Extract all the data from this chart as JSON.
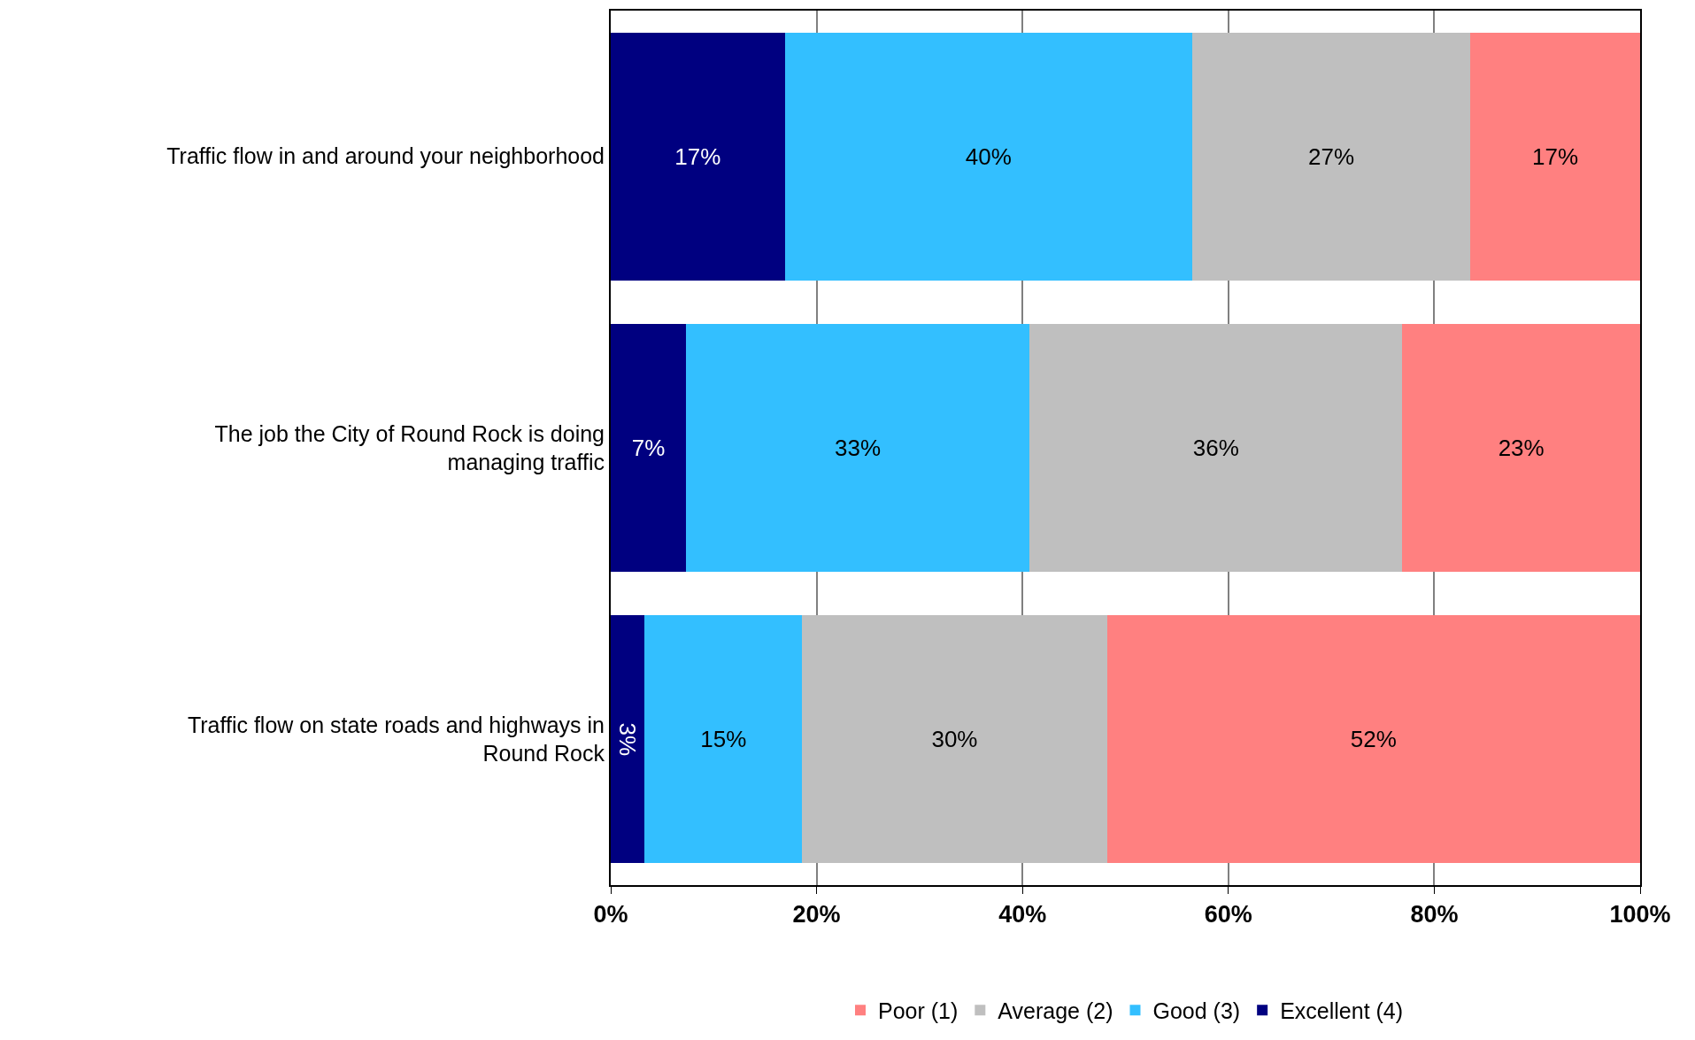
{
  "chart_data": {
    "type": "bar",
    "orientation": "horizontal",
    "stacked": true,
    "categories": [
      "Traffic flow in and around your neighborhood",
      "The job the City of Round Rock is doing managing traffic",
      "Traffic flow on state roads and highways in Round Rock"
    ],
    "series": [
      {
        "name": "Excellent (4)",
        "color": "#000080",
        "values": [
          16.9,
          7.3,
          3.3
        ],
        "value_labels": [
          "17%",
          "7%",
          "3%"
        ]
      },
      {
        "name": "Good (3)",
        "color": "#33bfff",
        "values": [
          39.6,
          33.4,
          15.3
        ],
        "value_labels": [
          "40%",
          "33%",
          "15%"
        ]
      },
      {
        "name": "Average (2)",
        "color": "#bfbfbf",
        "values": [
          27.0,
          36.2,
          29.6
        ],
        "value_labels": [
          "27%",
          "36%",
          "30%"
        ]
      },
      {
        "name": "Poor (1)",
        "color": "#ff8080",
        "values": [
          16.5,
          23.1,
          51.8
        ],
        "value_labels": [
          "17%",
          "23%",
          "52%"
        ]
      }
    ],
    "xlim": [
      0,
      100
    ],
    "xticks": [
      {
        "value": 0,
        "label": "0%"
      },
      {
        "value": 20,
        "label": "20%"
      },
      {
        "value": 40,
        "label": "40%"
      },
      {
        "value": 60,
        "label": "60%"
      },
      {
        "value": 80,
        "label": "80%"
      },
      {
        "value": 100,
        "label": "100%"
      }
    ],
    "grid": "x",
    "legend": "bottom"
  }
}
